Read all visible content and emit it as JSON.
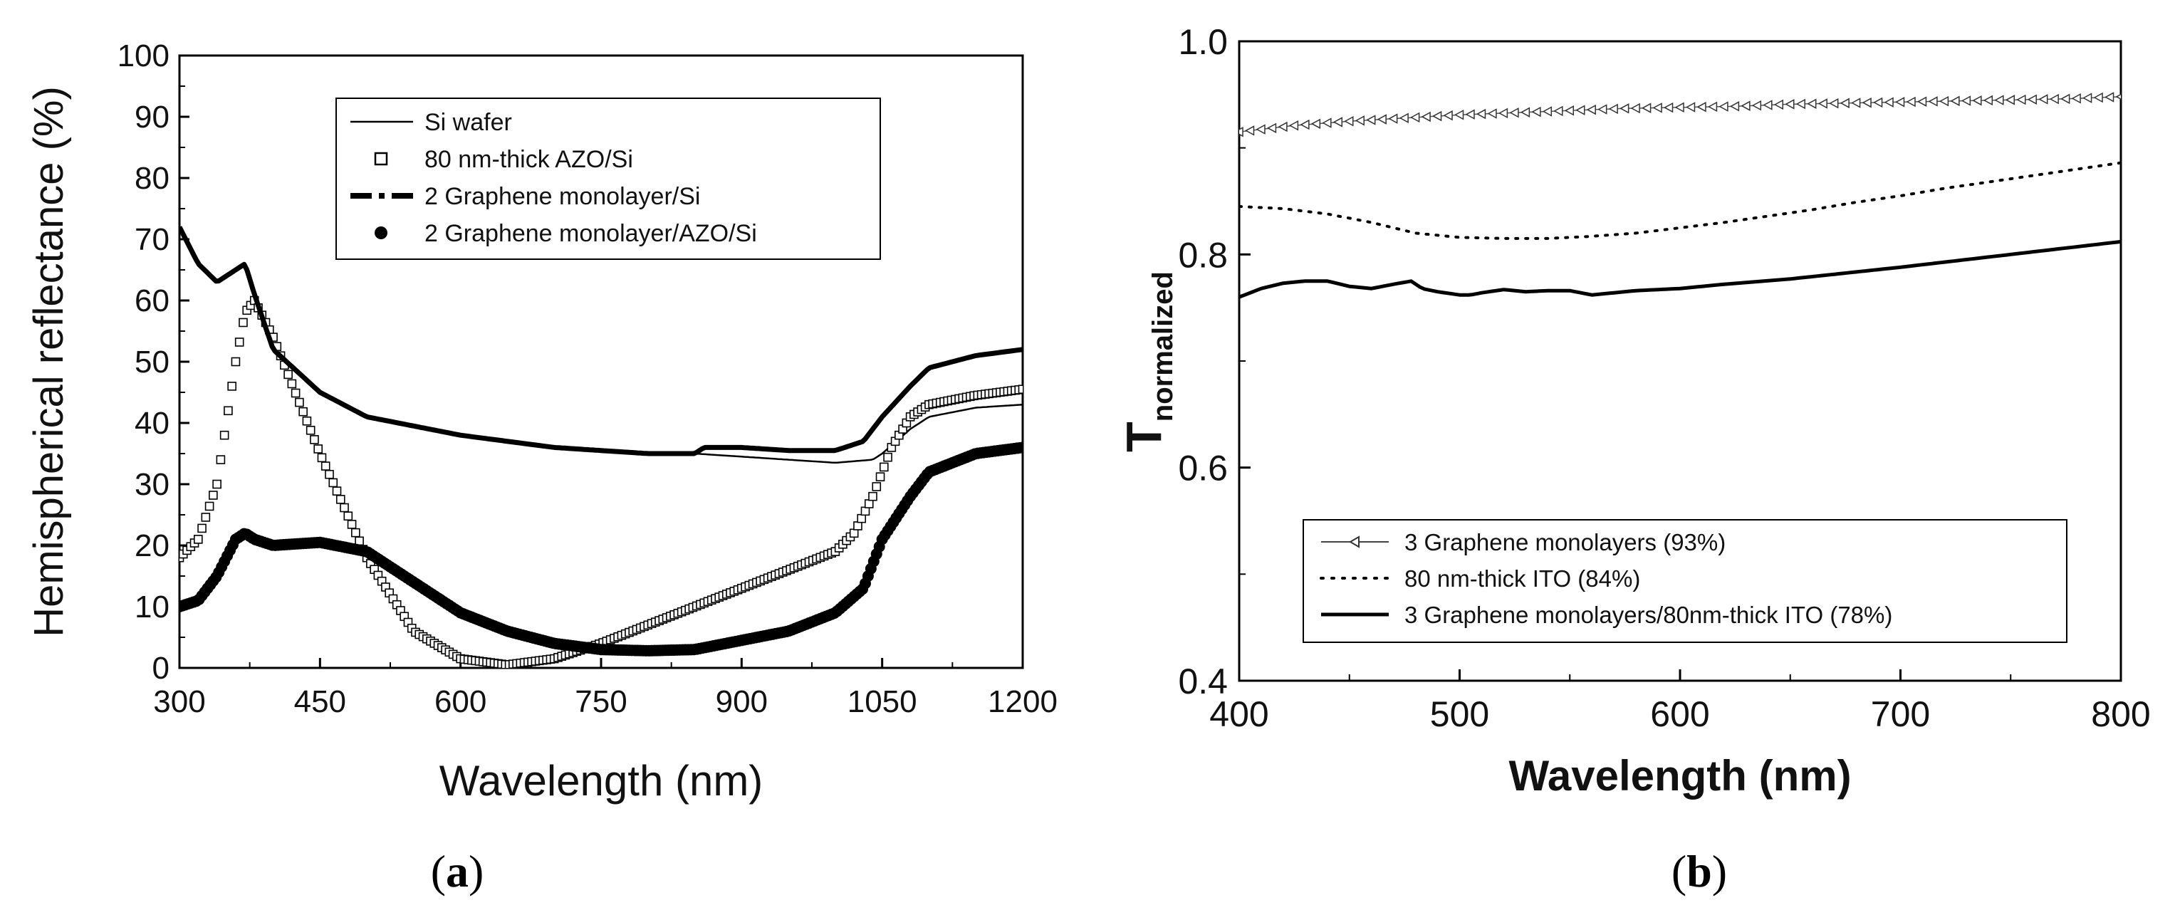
{
  "chart_data": [
    {
      "panel": "a",
      "type": "line",
      "caption_letter": "a",
      "xlabel": "Wavelength (nm)",
      "ylabel": "Hemispherical reflectance (%)",
      "xlim": [
        300,
        1200
      ],
      "ylim": [
        0,
        100
      ],
      "xticks": [
        300,
        450,
        600,
        750,
        900,
        1050,
        1200
      ],
      "yticks": [
        0,
        10,
        20,
        30,
        40,
        50,
        60,
        70,
        80,
        90,
        100
      ],
      "legend_position": "top-center",
      "series": [
        {
          "name": "Si wafer",
          "style": "thin-line",
          "x": [
            300,
            320,
            340,
            360,
            370,
            380,
            400,
            450,
            500,
            600,
            700,
            800,
            850,
            900,
            950,
            1000,
            1040,
            1050,
            1080,
            1100,
            1150,
            1200
          ],
          "y": [
            72,
            66,
            63,
            65,
            66,
            61,
            52,
            45,
            41,
            38,
            36,
            35,
            35,
            34.5,
            34,
            33.5,
            34,
            35,
            39,
            41,
            42.5,
            43
          ]
        },
        {
          "name": "80 nm-thick AZO/Si",
          "style": "open-squares",
          "x": [
            300,
            320,
            340,
            360,
            370,
            380,
            400,
            450,
            500,
            550,
            600,
            650,
            700,
            750,
            800,
            850,
            900,
            950,
            1000,
            1020,
            1040,
            1060,
            1080,
            1100,
            1150,
            1200
          ],
          "y": [
            18,
            21,
            30,
            50,
            58,
            60,
            54,
            35,
            18,
            6,
            1.5,
            0.5,
            1.5,
            4,
            7,
            10,
            13,
            16,
            19,
            22,
            28,
            36,
            41,
            43,
            44.5,
            45.5
          ]
        },
        {
          "name": "2 Graphene monolayer/Si",
          "style": "dash-dot",
          "x": [
            300,
            320,
            340,
            360,
            370,
            380,
            400,
            450,
            500,
            600,
            700,
            800,
            850,
            860,
            900,
            950,
            1000,
            1030,
            1050,
            1080,
            1100,
            1150,
            1200
          ],
          "y": [
            72,
            66,
            63,
            65,
            66,
            61,
            52,
            45,
            41,
            38,
            36,
            35,
            35,
            36,
            36,
            35.5,
            35.5,
            37,
            41,
            46,
            49,
            51,
            52
          ]
        },
        {
          "name": "2 Graphene monolayer/AZO/Si",
          "style": "filled-circles",
          "x": [
            300,
            320,
            340,
            360,
            370,
            380,
            400,
            450,
            500,
            550,
            600,
            650,
            700,
            750,
            800,
            850,
            900,
            950,
            1000,
            1030,
            1050,
            1080,
            1100,
            1150,
            1200
          ],
          "y": [
            10,
            11,
            15,
            21,
            22,
            21,
            20,
            20.5,
            19,
            14,
            9,
            6,
            4,
            3,
            2.8,
            3,
            4.5,
            6,
            9,
            13,
            21,
            28,
            32,
            35,
            36
          ]
        }
      ]
    },
    {
      "panel": "b",
      "type": "line",
      "caption_letter": "b",
      "xlabel": "Wavelength (nm)",
      "ylabel_main": "T",
      "ylabel_sub": "normalized",
      "xlim": [
        400,
        800
      ],
      "ylim": [
        0.4,
        1.0
      ],
      "xticks": [
        400,
        500,
        600,
        700,
        800
      ],
      "yticks": [
        0.4,
        0.6,
        0.8,
        1.0
      ],
      "ytick_labels": [
        "0.4",
        "0.6",
        "0.8",
        "1.0"
      ],
      "legend_position": "bottom-left",
      "series": [
        {
          "name": "3 Graphene monolayers (93%)",
          "style": "line-triangles",
          "x": [
            400,
            425,
            450,
            475,
            500,
            525,
            550,
            575,
            600,
            625,
            650,
            675,
            700,
            725,
            750,
            775,
            800
          ],
          "y": [
            0.915,
            0.921,
            0.925,
            0.928,
            0.931,
            0.933,
            0.935,
            0.937,
            0.938,
            0.939,
            0.941,
            0.942,
            0.943,
            0.944,
            0.945,
            0.946,
            0.948
          ]
        },
        {
          "name": "80 nm-thick ITO (84%)",
          "style": "dotted",
          "x": [
            400,
            420,
            440,
            460,
            480,
            500,
            520,
            540,
            560,
            580,
            600,
            620,
            640,
            660,
            680,
            700,
            720,
            740,
            760,
            780,
            800
          ],
          "y": [
            0.845,
            0.843,
            0.838,
            0.83,
            0.82,
            0.816,
            0.815,
            0.815,
            0.817,
            0.82,
            0.825,
            0.83,
            0.836,
            0.842,
            0.849,
            0.855,
            0.862,
            0.868,
            0.874,
            0.88,
            0.886
          ]
        },
        {
          "name": "3 Graphene monolayers/80nm-thick ITO (78%)",
          "style": "thick-line",
          "x": [
            400,
            410,
            420,
            430,
            440,
            450,
            460,
            470,
            478,
            483,
            490,
            500,
            505,
            510,
            520,
            530,
            540,
            550,
            555,
            560,
            570,
            580,
            600,
            620,
            650,
            700,
            750,
            800
          ],
          "y": [
            0.76,
            0.768,
            0.773,
            0.775,
            0.775,
            0.77,
            0.768,
            0.772,
            0.775,
            0.768,
            0.765,
            0.762,
            0.762,
            0.764,
            0.767,
            0.765,
            0.766,
            0.766,
            0.764,
            0.762,
            0.764,
            0.766,
            0.768,
            0.772,
            0.777,
            0.788,
            0.8,
            0.812
          ]
        }
      ]
    }
  ]
}
